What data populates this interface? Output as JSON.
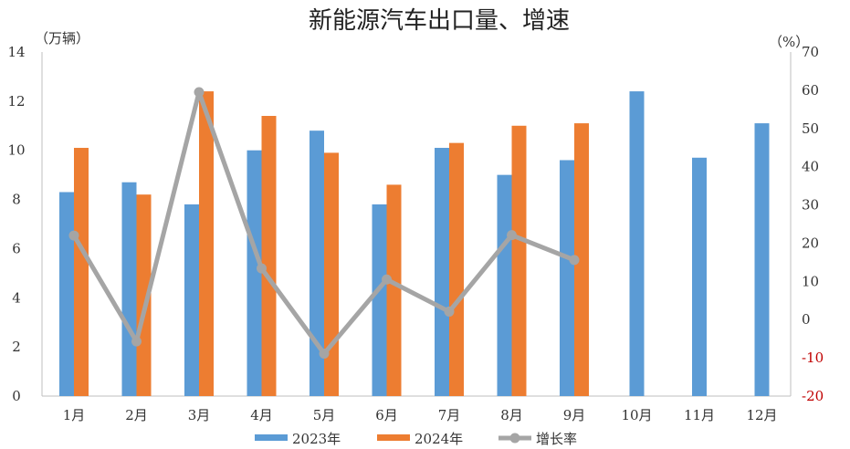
{
  "chart_data": {
    "type": "bar",
    "title": "新能源汽车出口量、增速",
    "left_unit": "（万辆）",
    "right_unit": "（%）",
    "categories": [
      "1月",
      "2月",
      "3月",
      "4月",
      "5月",
      "6月",
      "7月",
      "8月",
      "9月",
      "10月",
      "11月",
      "12月"
    ],
    "series": [
      {
        "name": "2023年",
        "type": "bar",
        "axis": "left",
        "color": "#5b9bd5",
        "values": [
          8.3,
          8.7,
          7.8,
          10.0,
          10.8,
          7.8,
          10.1,
          9.0,
          9.6,
          12.4,
          9.7,
          11.1
        ]
      },
      {
        "name": "2024年",
        "type": "bar",
        "axis": "left",
        "color": "#ed7d31",
        "values": [
          10.1,
          8.2,
          12.4,
          11.4,
          9.9,
          8.6,
          10.3,
          11.0,
          11.1,
          null,
          null,
          null
        ]
      },
      {
        "name": "增长率",
        "type": "line",
        "axis": "right",
        "color": "#a5a5a5",
        "values": [
          22.0,
          -5.7,
          59.5,
          13.4,
          -8.9,
          10.5,
          2.1,
          22.1,
          15.6,
          null,
          null,
          null
        ]
      }
    ],
    "left_axis": {
      "min": 0,
      "max": 14,
      "ticks": [
        "0",
        "2",
        "4",
        "6",
        "8",
        "10",
        "12",
        "14"
      ]
    },
    "right_axis": {
      "min": -20,
      "max": 70,
      "ticks": [
        "-20",
        "-10",
        "0",
        "10",
        "20",
        "30",
        "40",
        "50",
        "60",
        "70"
      ]
    },
    "negative_tick_color": "#c00000",
    "grid": false,
    "legend_position": "bottom"
  }
}
